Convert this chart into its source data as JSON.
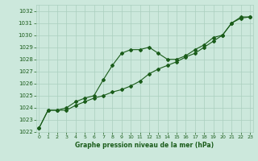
{
  "xlabel": "Graphe pression niveau de la mer (hPa)",
  "ylim": [
    1022,
    1032.5
  ],
  "xlim": [
    -0.3,
    23.3
  ],
  "yticks": [
    1022,
    1023,
    1024,
    1025,
    1026,
    1027,
    1028,
    1029,
    1030,
    1031,
    1032
  ],
  "xticks": [
    0,
    1,
    2,
    3,
    4,
    5,
    6,
    7,
    8,
    9,
    10,
    11,
    12,
    13,
    14,
    15,
    16,
    17,
    18,
    19,
    20,
    21,
    22,
    23
  ],
  "bg_color": "#cce8dc",
  "grid_color": "#aacfbe",
  "line_color": "#1a5c1a",
  "line1_y": [
    1022.3,
    1023.8,
    1023.8,
    1023.8,
    1024.2,
    1024.5,
    1024.8,
    1025.0,
    1025.3,
    1025.5,
    1025.8,
    1026.2,
    1026.8,
    1027.2,
    1027.5,
    1027.8,
    1028.2,
    1028.5,
    1029.0,
    1029.5,
    1030.0,
    1031.0,
    1031.4,
    1031.5
  ],
  "line2_y": [
    1022.3,
    1023.8,
    1023.8,
    1024.0,
    1024.5,
    1024.8,
    1025.0,
    1026.3,
    1027.5,
    1028.5,
    1028.8,
    1028.8,
    1029.0,
    1028.5,
    1028.0,
    1028.0,
    1028.3,
    1028.8,
    1029.2,
    1029.8,
    1030.0,
    1031.0,
    1031.5,
    1031.5
  ]
}
